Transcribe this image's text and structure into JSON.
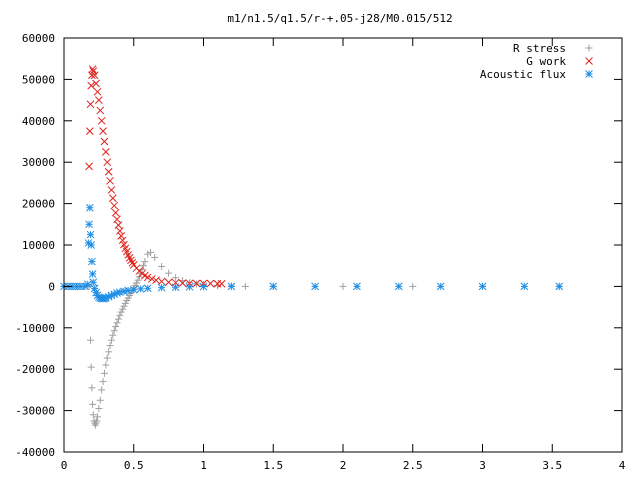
{
  "chart_data": {
    "type": "scatter",
    "title": "m1/n1.5/q1.5/r-+.05-j28/M0.015/512",
    "xlabel": "",
    "ylabel": "",
    "xlim": [
      0,
      4
    ],
    "ylim": [
      -40000,
      60000
    ],
    "grid": false,
    "legend_position": "top-right",
    "x_ticks": [
      {
        "value": 0,
        "label": "0"
      },
      {
        "value": 0.5,
        "label": "0.5"
      },
      {
        "value": 1,
        "label": "1"
      },
      {
        "value": 1.5,
        "label": "1.5"
      },
      {
        "value": 2,
        "label": "2"
      },
      {
        "value": 2.5,
        "label": "2.5"
      },
      {
        "value": 3,
        "label": "3"
      },
      {
        "value": 3.5,
        "label": "3.5"
      },
      {
        "value": 4,
        "label": "4"
      }
    ],
    "y_ticks": [
      {
        "value": -40000,
        "label": "-40000"
      },
      {
        "value": -30000,
        "label": "-30000"
      },
      {
        "value": -20000,
        "label": "-20000"
      },
      {
        "value": -10000,
        "label": "-10000"
      },
      {
        "value": 0,
        "label": "0"
      },
      {
        "value": 10000,
        "label": "10000"
      },
      {
        "value": 20000,
        "label": "20000"
      },
      {
        "value": 30000,
        "label": "30000"
      },
      {
        "value": 40000,
        "label": "40000"
      },
      {
        "value": 50000,
        "label": "50000"
      },
      {
        "value": 60000,
        "label": "60000"
      }
    ],
    "series": [
      {
        "name": "R stress",
        "marker": "plus",
        "color": "#a0a0a0",
        "points": [
          [
            0.0,
            0
          ],
          [
            0.05,
            0
          ],
          [
            0.1,
            0
          ],
          [
            0.15,
            0
          ],
          [
            0.18,
            0
          ],
          [
            0.19,
            -13000
          ],
          [
            0.195,
            -19500
          ],
          [
            0.2,
            -24500
          ],
          [
            0.205,
            -28500
          ],
          [
            0.21,
            -31000
          ],
          [
            0.215,
            -32500
          ],
          [
            0.22,
            -33000
          ],
          [
            0.225,
            -33500
          ],
          [
            0.23,
            -33000
          ],
          [
            0.235,
            -32500
          ],
          [
            0.24,
            -31500
          ],
          [
            0.25,
            -29500
          ],
          [
            0.26,
            -27500
          ],
          [
            0.27,
            -25000
          ],
          [
            0.28,
            -23000
          ],
          [
            0.29,
            -21000
          ],
          [
            0.3,
            -19000
          ],
          [
            0.31,
            -17300
          ],
          [
            0.32,
            -15800
          ],
          [
            0.33,
            -14300
          ],
          [
            0.34,
            -13000
          ],
          [
            0.35,
            -11800
          ],
          [
            0.36,
            -10700
          ],
          [
            0.37,
            -9700
          ],
          [
            0.38,
            -8800
          ],
          [
            0.39,
            -7900
          ],
          [
            0.4,
            -7000
          ],
          [
            0.41,
            -6200
          ],
          [
            0.42,
            -5500
          ],
          [
            0.43,
            -4800
          ],
          [
            0.44,
            -4100
          ],
          [
            0.45,
            -3400
          ],
          [
            0.46,
            -2800
          ],
          [
            0.47,
            -2200
          ],
          [
            0.48,
            -1600
          ],
          [
            0.49,
            -1000
          ],
          [
            0.5,
            -400
          ],
          [
            0.51,
            200
          ],
          [
            0.52,
            800
          ],
          [
            0.53,
            1500
          ],
          [
            0.54,
            2300
          ],
          [
            0.55,
            3200
          ],
          [
            0.56,
            4100
          ],
          [
            0.57,
            5000
          ],
          [
            0.58,
            6000
          ],
          [
            0.6,
            7800
          ],
          [
            0.62,
            8200
          ],
          [
            0.65,
            7000
          ],
          [
            0.7,
            4800
          ],
          [
            0.75,
            3200
          ],
          [
            0.8,
            2100
          ],
          [
            0.85,
            1400
          ],
          [
            0.9,
            900
          ],
          [
            0.95,
            600
          ],
          [
            1.0,
            400
          ],
          [
            1.1,
            200
          ],
          [
            1.2,
            100
          ],
          [
            1.3,
            0
          ],
          [
            1.5,
            0
          ],
          [
            2.0,
            0
          ],
          [
            2.5,
            0
          ],
          [
            3.0,
            0
          ],
          [
            3.55,
            0
          ]
        ]
      },
      {
        "name": "G work",
        "marker": "cross",
        "color": "#e0201b",
        "points": [
          [
            0.18,
            29000
          ],
          [
            0.185,
            37500
          ],
          [
            0.19,
            44000
          ],
          [
            0.195,
            48500
          ],
          [
            0.2,
            51000
          ],
          [
            0.205,
            52500
          ],
          [
            0.21,
            52000
          ],
          [
            0.22,
            51000
          ],
          [
            0.23,
            49000
          ],
          [
            0.24,
            47000
          ],
          [
            0.25,
            45000
          ],
          [
            0.26,
            42500
          ],
          [
            0.27,
            40000
          ],
          [
            0.28,
            37500
          ],
          [
            0.29,
            35000
          ],
          [
            0.3,
            32500
          ],
          [
            0.31,
            30000
          ],
          [
            0.32,
            27700
          ],
          [
            0.33,
            25500
          ],
          [
            0.34,
            23300
          ],
          [
            0.35,
            21300
          ],
          [
            0.36,
            19500
          ],
          [
            0.37,
            17800
          ],
          [
            0.38,
            16200
          ],
          [
            0.39,
            14800
          ],
          [
            0.4,
            13400
          ],
          [
            0.41,
            12200
          ],
          [
            0.42,
            11100
          ],
          [
            0.43,
            10100
          ],
          [
            0.44,
            9200
          ],
          [
            0.45,
            8400
          ],
          [
            0.46,
            7600
          ],
          [
            0.47,
            6900
          ],
          [
            0.48,
            6300
          ],
          [
            0.49,
            5700
          ],
          [
            0.5,
            5200
          ],
          [
            0.52,
            4400
          ],
          [
            0.54,
            3700
          ],
          [
            0.56,
            3100
          ],
          [
            0.58,
            2600
          ],
          [
            0.6,
            2200
          ],
          [
            0.63,
            1800
          ],
          [
            0.66,
            1500
          ],
          [
            0.7,
            1200
          ],
          [
            0.75,
            1000
          ],
          [
            0.8,
            900
          ],
          [
            0.85,
            800
          ],
          [
            0.9,
            750
          ],
          [
            0.95,
            700
          ],
          [
            1.0,
            700
          ],
          [
            1.05,
            700
          ],
          [
            1.1,
            650
          ],
          [
            1.13,
            650
          ]
        ]
      },
      {
        "name": "Acoustic flux",
        "marker": "star",
        "color": "#1e8ee6",
        "points": [
          [
            0.0,
            0
          ],
          [
            0.03,
            0
          ],
          [
            0.06,
            0
          ],
          [
            0.09,
            0
          ],
          [
            0.12,
            0
          ],
          [
            0.15,
            0
          ],
          [
            0.17,
            500
          ],
          [
            0.175,
            10500
          ],
          [
            0.18,
            15000
          ],
          [
            0.185,
            19000
          ],
          [
            0.19,
            12500
          ],
          [
            0.195,
            10000
          ],
          [
            0.2,
            6000
          ],
          [
            0.205,
            3000
          ],
          [
            0.21,
            1000
          ],
          [
            0.22,
            -500
          ],
          [
            0.23,
            -1500
          ],
          [
            0.24,
            -2200
          ],
          [
            0.25,
            -2600
          ],
          [
            0.26,
            -2800
          ],
          [
            0.27,
            -2900
          ],
          [
            0.28,
            -3000
          ],
          [
            0.29,
            -2900
          ],
          [
            0.3,
            -2800
          ],
          [
            0.32,
            -2500
          ],
          [
            0.34,
            -2200
          ],
          [
            0.36,
            -1900
          ],
          [
            0.38,
            -1600
          ],
          [
            0.4,
            -1400
          ],
          [
            0.43,
            -1200
          ],
          [
            0.46,
            -1000
          ],
          [
            0.5,
            -800
          ],
          [
            0.55,
            -600
          ],
          [
            0.6,
            -450
          ],
          [
            0.7,
            -300
          ],
          [
            0.8,
            -200
          ],
          [
            0.9,
            -100
          ],
          [
            1.0,
            -50
          ],
          [
            1.2,
            0
          ],
          [
            1.5,
            0
          ],
          [
            1.8,
            0
          ],
          [
            2.1,
            0
          ],
          [
            2.4,
            0
          ],
          [
            2.7,
            0
          ],
          [
            3.0,
            0
          ],
          [
            3.3,
            0
          ],
          [
            3.55,
            0
          ]
        ]
      }
    ]
  }
}
